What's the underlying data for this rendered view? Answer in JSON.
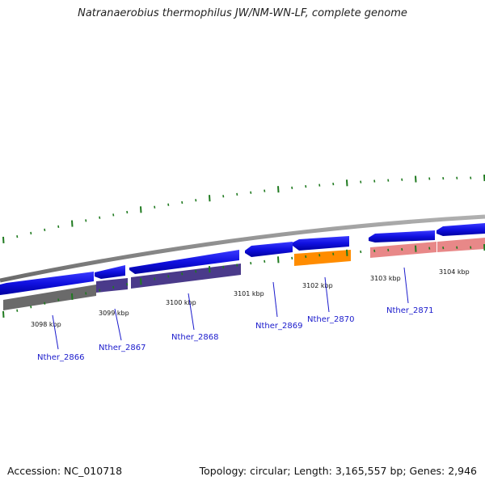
{
  "title": "Natranaerobius thermophilus JW/NM-WN-LF, complete genome",
  "footer": {
    "accession": "Accession: NC_010718",
    "topology": "Topology: circular; Length: 3,165,557 bp; Genes: 2,946"
  },
  "colors": {
    "gene_forward": "#1010e0",
    "backbone": "#8a8a8a",
    "tick": "#1f7a1f",
    "label": "#1a1acc"
  },
  "scale_labels": [
    {
      "text": "3098 kbp"
    },
    {
      "text": "3099 kbp"
    },
    {
      "text": "3100 kbp"
    },
    {
      "text": "3101 kbp"
    },
    {
      "text": "3102 kbp"
    },
    {
      "text": "3103 kbp"
    },
    {
      "text": "3104 kbp"
    }
  ],
  "genes": [
    {
      "label": "Nther_2866",
      "product_color": "#666666"
    },
    {
      "label": "Nther_2867",
      "product_color": "#4a3a8a"
    },
    {
      "label": "Nther_2868",
      "product_color": "#4a3a8a"
    },
    {
      "label": "Nther_2869",
      "product_color": ""
    },
    {
      "label": "Nther_2870",
      "product_color": "#ff8800"
    },
    {
      "label": "Nther_2871",
      "product_color": "#e88888"
    }
  ]
}
